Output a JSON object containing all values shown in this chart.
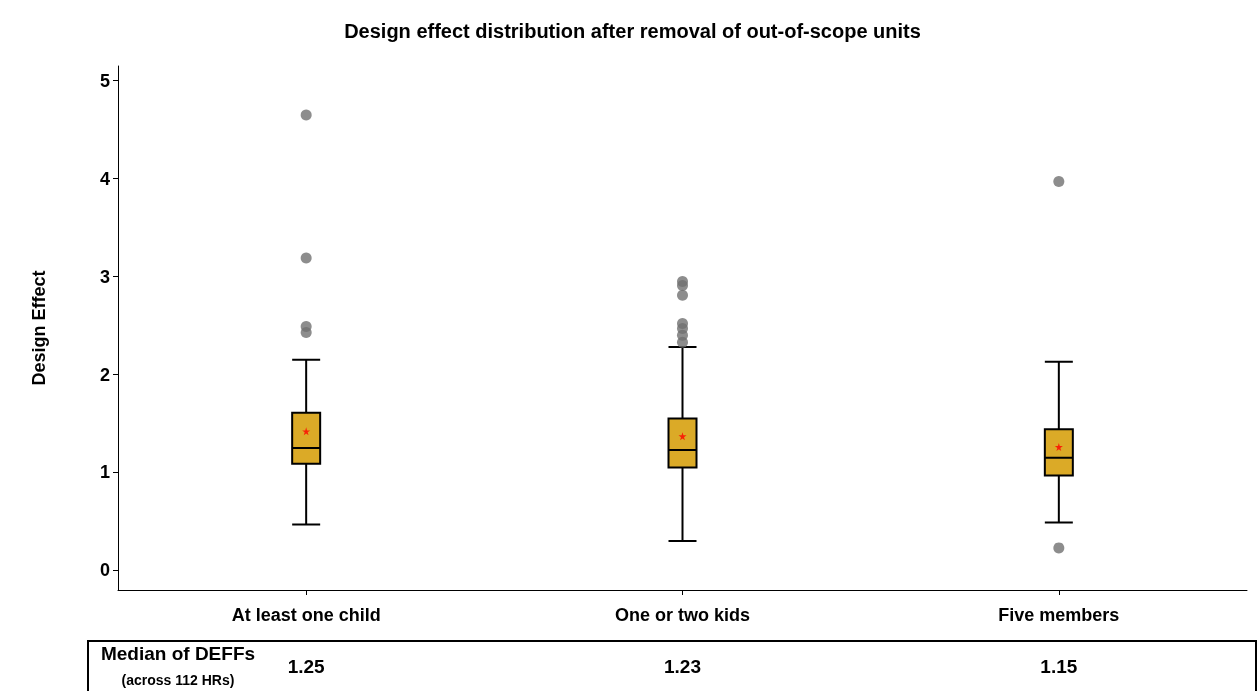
{
  "chart_data": {
    "type": "box",
    "title": "Design effect distribution after removal of out-of-scope units",
    "ylabel": "Design Effect",
    "categories": [
      "At least one child",
      "One or two kids",
      "Five members"
    ],
    "series": [
      {
        "color": "#dbaa27",
        "value_labels": [
          "1.25",
          "1.23",
          "1.15"
        ],
        "boxes": [
          {
            "low": 0.47,
            "q1": 1.09,
            "median": 1.25,
            "q3": 1.61,
            "high": 2.15,
            "mean": 1.42,
            "outliers": [
              2.43,
              2.49,
              3.19,
              4.65
            ]
          },
          {
            "low": 0.3,
            "q1": 1.05,
            "median": 1.23,
            "q3": 1.55,
            "high": 2.28,
            "mean": 1.37,
            "outliers": [
              2.33,
              2.4,
              2.47,
              2.52,
              2.81,
              2.91,
              2.95
            ]
          },
          {
            "low": 0.49,
            "q1": 0.97,
            "median": 1.15,
            "q3": 1.44,
            "high": 2.13,
            "mean": 1.26,
            "outliers": [
              0.23,
              3.97
            ]
          }
        ]
      }
    ],
    "annotations": [
      "Median of DEFFs",
      "(across 112 HRs)"
    ],
    "ylim": [
      -0.2,
      5.15
    ],
    "yticks": [
      0,
      1,
      2,
      3,
      4,
      5
    ]
  }
}
